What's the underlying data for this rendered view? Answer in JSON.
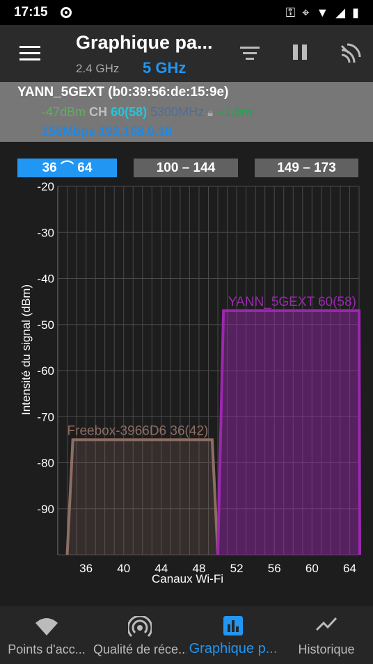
{
  "status_bar": {
    "time": "17:15"
  },
  "app_bar": {
    "title": "Graphique pa...",
    "band_24": "2.4 GHz",
    "band_5": "5 GHz"
  },
  "connection": {
    "ssid": "YANN_5GEXT (b0:39:56:de:15:9e)",
    "signal": "-47dBm",
    "ch_label": "CH",
    "channel": "60(58)",
    "frequency": "5300MHz",
    "distance": "~1,0m",
    "speed": "150Mbps",
    "ip": "192.168.0.16"
  },
  "range_tabs": [
    {
      "label": "36 ⌒ 64",
      "active": true
    },
    {
      "label": "100 – 144",
      "active": false
    },
    {
      "label": "149 – 173",
      "active": false
    }
  ],
  "colors": {
    "accent": "#2196f3",
    "yann": "#9c27b0",
    "freebox": "#8d6e63"
  },
  "chart_data": {
    "type": "area",
    "xlabel": "Canaux Wi-Fi",
    "ylabel": "Intensité du signal (dBm)",
    "xticks": [
      36,
      40,
      44,
      48,
      52,
      56,
      60,
      64
    ],
    "yticks": [
      -20,
      -30,
      -40,
      -50,
      -60,
      -70,
      -80,
      -90
    ],
    "xlim": [
      33,
      65
    ],
    "ylim": [
      -100,
      -20
    ],
    "grid": true,
    "series": [
      {
        "name": "Freebox-3966D6 36(42)",
        "label": "Freebox-3966D6 36(42)",
        "channel_start": 34,
        "channel_end": 50,
        "signal_dbm": -75,
        "color": "#8d6e63"
      },
      {
        "name": "YANN_5GEXT 60(58)",
        "label": "YANN_5GEXT 60(58)",
        "channel_start": 50,
        "channel_end": 66,
        "signal_dbm": -47,
        "color": "#9c27b0"
      }
    ]
  },
  "bottom_nav": [
    {
      "label": "Points d'acc...",
      "active": false
    },
    {
      "label": "Qualité de réce...",
      "active": false
    },
    {
      "label": "Graphique p...",
      "active": true
    },
    {
      "label": "Historique",
      "active": false
    }
  ]
}
